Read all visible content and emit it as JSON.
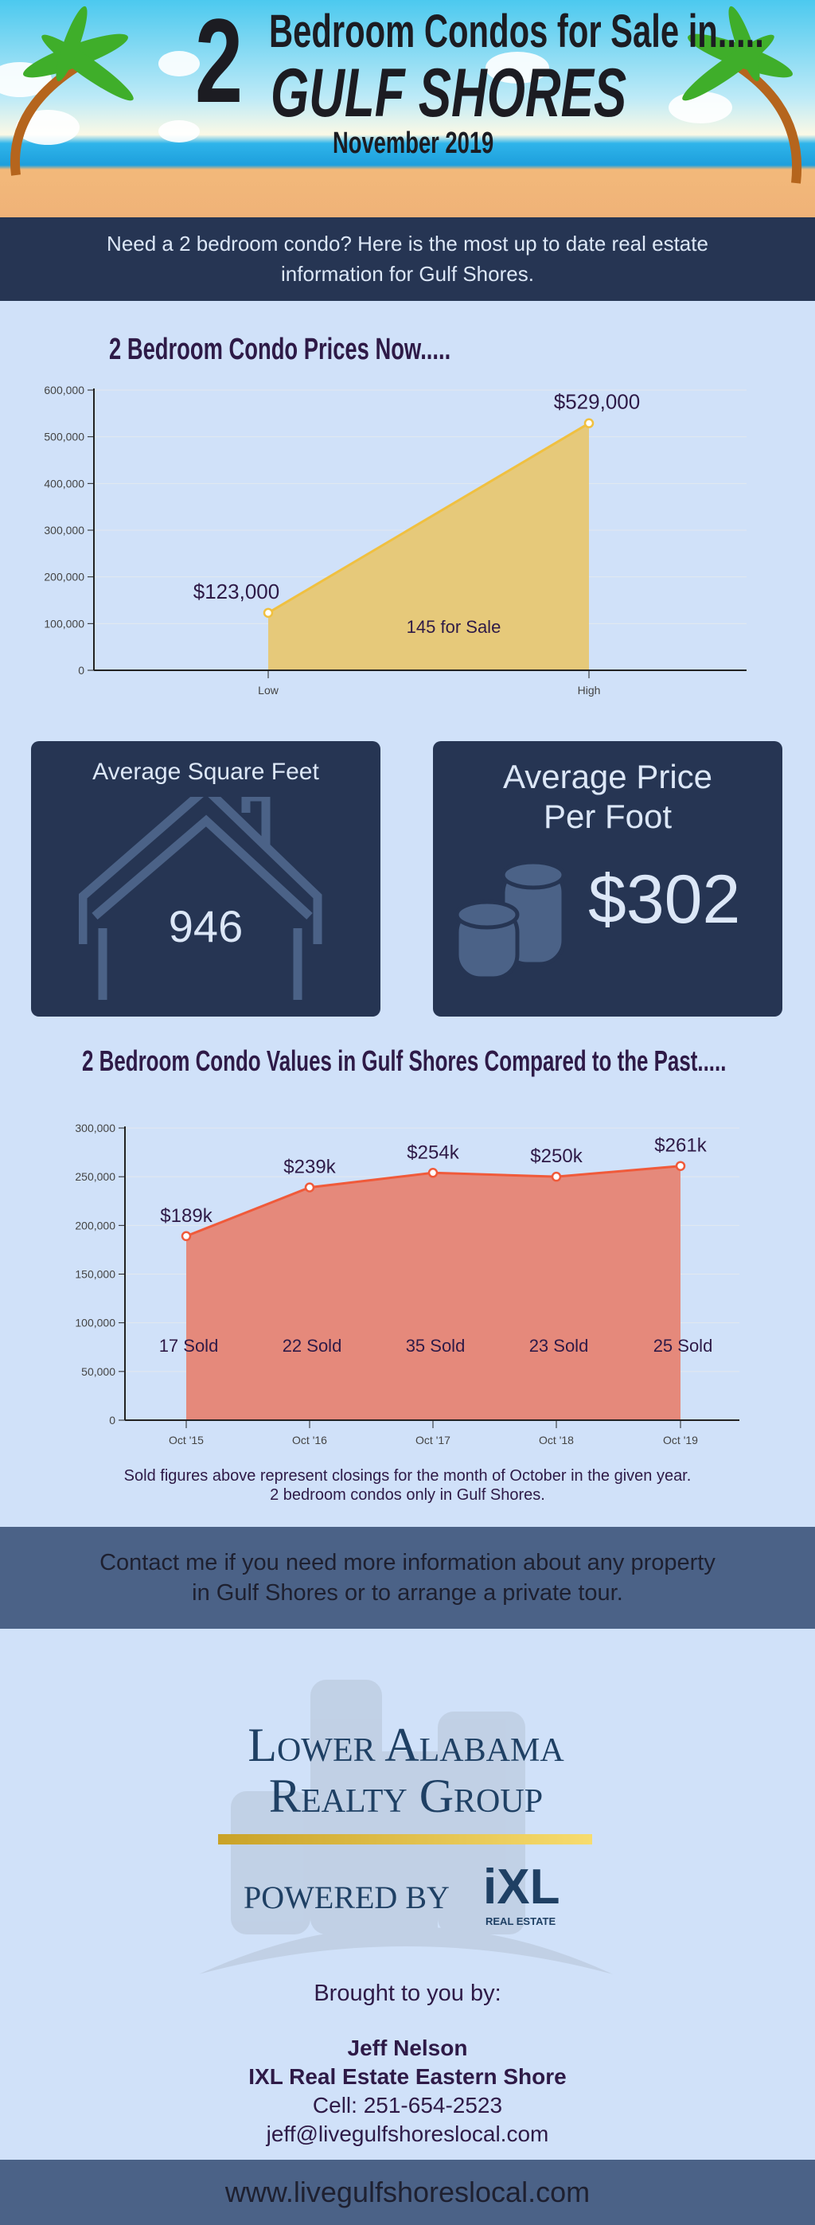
{
  "header": {
    "big_number": "2",
    "line1": "Bedroom Condos for Sale in.....",
    "line2": "GULF SHORES",
    "date": "November 2019"
  },
  "intro": {
    "line1": "Need a 2 bedroom condo?  Here is the most up to date real estate",
    "line2": "information for Gulf Shores."
  },
  "section1": {
    "title": "2 Bedroom Condo Prices Now....."
  },
  "stats": {
    "sqft_label": "Average Square Feet",
    "sqft_value": "946",
    "ppf_label_1": "Average Price",
    "ppf_label_2": "Per Foot",
    "ppf_value": "$302"
  },
  "section2": {
    "title": "2 Bedroom Condo Values in Gulf Shores Compared to the Past.....",
    "note1": "Sold figures above represent closings for the month of October in the given year.",
    "note2": "2 bedroom condos only in Gulf Shores."
  },
  "contact": {
    "line1": "Contact me if you need more information about any property",
    "line2": "in Gulf Shores or to arrange a private tour."
  },
  "logo": {
    "line1": "Lower Alabama",
    "line2": "Realty Group",
    "powered": "POWERED BY",
    "ixl": "iXL",
    "ixl_sub": "REAL ESTATE"
  },
  "agent": {
    "brought": "Brought to you by:",
    "name": "Jeff Nelson",
    "company": "IXL Real Estate Eastern Shore",
    "cell": "Cell: 251-654-2523",
    "email": "jeff@livegulfshoreslocal.com"
  },
  "footer": {
    "website": "www.livegulfshoreslocal.com"
  },
  "colors": {
    "background": "#d0e1f9",
    "navy": "#263553",
    "band": "#4b6287",
    "text": "#2e1a47",
    "area1": "#e6c97a",
    "line1": "#f0c040",
    "area2": "#e5897b",
    "line2": "#f05a3a"
  },
  "chart_data": [
    {
      "type": "area",
      "categories": [
        "Low",
        "High"
      ],
      "values": [
        123000,
        529000
      ],
      "data_labels": [
        "$123,000",
        "$529,000"
      ],
      "annotation": "145 for Sale",
      "ylim": [
        0,
        600000
      ],
      "yticks": [
        "0",
        "100,000",
        "200,000",
        "300,000",
        "400,000",
        "500,000",
        "600,000"
      ],
      "grid": true
    },
    {
      "type": "area",
      "categories": [
        "Oct '15",
        "Oct '16",
        "Oct '17",
        "Oct '18",
        "Oct '19"
      ],
      "values": [
        189000,
        239000,
        254000,
        250000,
        261000
      ],
      "data_labels": [
        "$189k",
        "$239k",
        "$254k",
        "$250k",
        "$261k"
      ],
      "sold_labels": [
        "17 Sold",
        "22 Sold",
        "35 Sold",
        "23 Sold",
        "25 Sold"
      ],
      "ylim": [
        0,
        300000
      ],
      "yticks": [
        "0",
        "50,000",
        "100,000",
        "150,000",
        "200,000",
        "250,000",
        "300,000"
      ],
      "grid": true
    }
  ]
}
